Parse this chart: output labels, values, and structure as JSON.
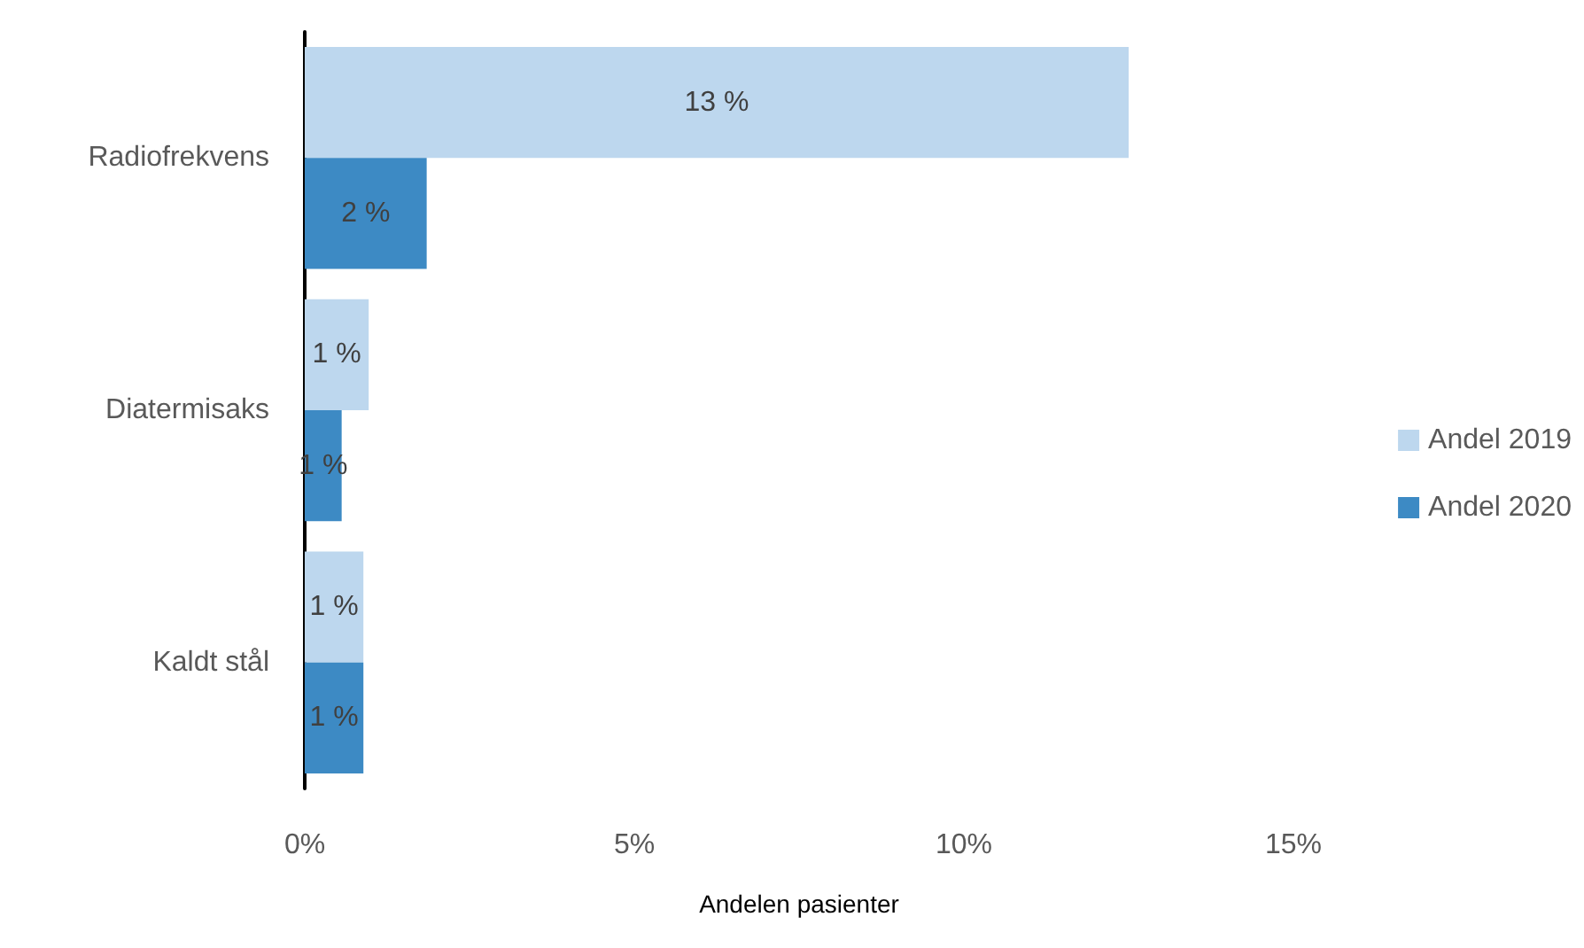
{
  "chart_data": {
    "type": "bar",
    "orientation": "horizontal",
    "xlabel": "Andelen pasienter",
    "categories": [
      "Radiofrekvens",
      "Diatermisaks",
      "Kaldt stål"
    ],
    "series": [
      {
        "name": "Andel 2019",
        "color": "#bdd7ee",
        "values": [
          12.5,
          0.97,
          0.89
        ],
        "value_labels": [
          "13 %",
          "1 %",
          "1 %"
        ]
      },
      {
        "name": "Andel 2020",
        "color": "#3d8ac4",
        "values": [
          1.85,
          0.56,
          0.89
        ],
        "value_labels": [
          "2 %",
          "1 %",
          "1 %"
        ]
      }
    ],
    "xlim": [
      0,
      15
    ],
    "xticks": [
      {
        "value": 0,
        "label": "0%"
      },
      {
        "value": 5,
        "label": "5%"
      },
      {
        "value": 10,
        "label": "10%"
      },
      {
        "value": 15,
        "label": "15%"
      }
    ],
    "grid": false,
    "legend": "right"
  }
}
